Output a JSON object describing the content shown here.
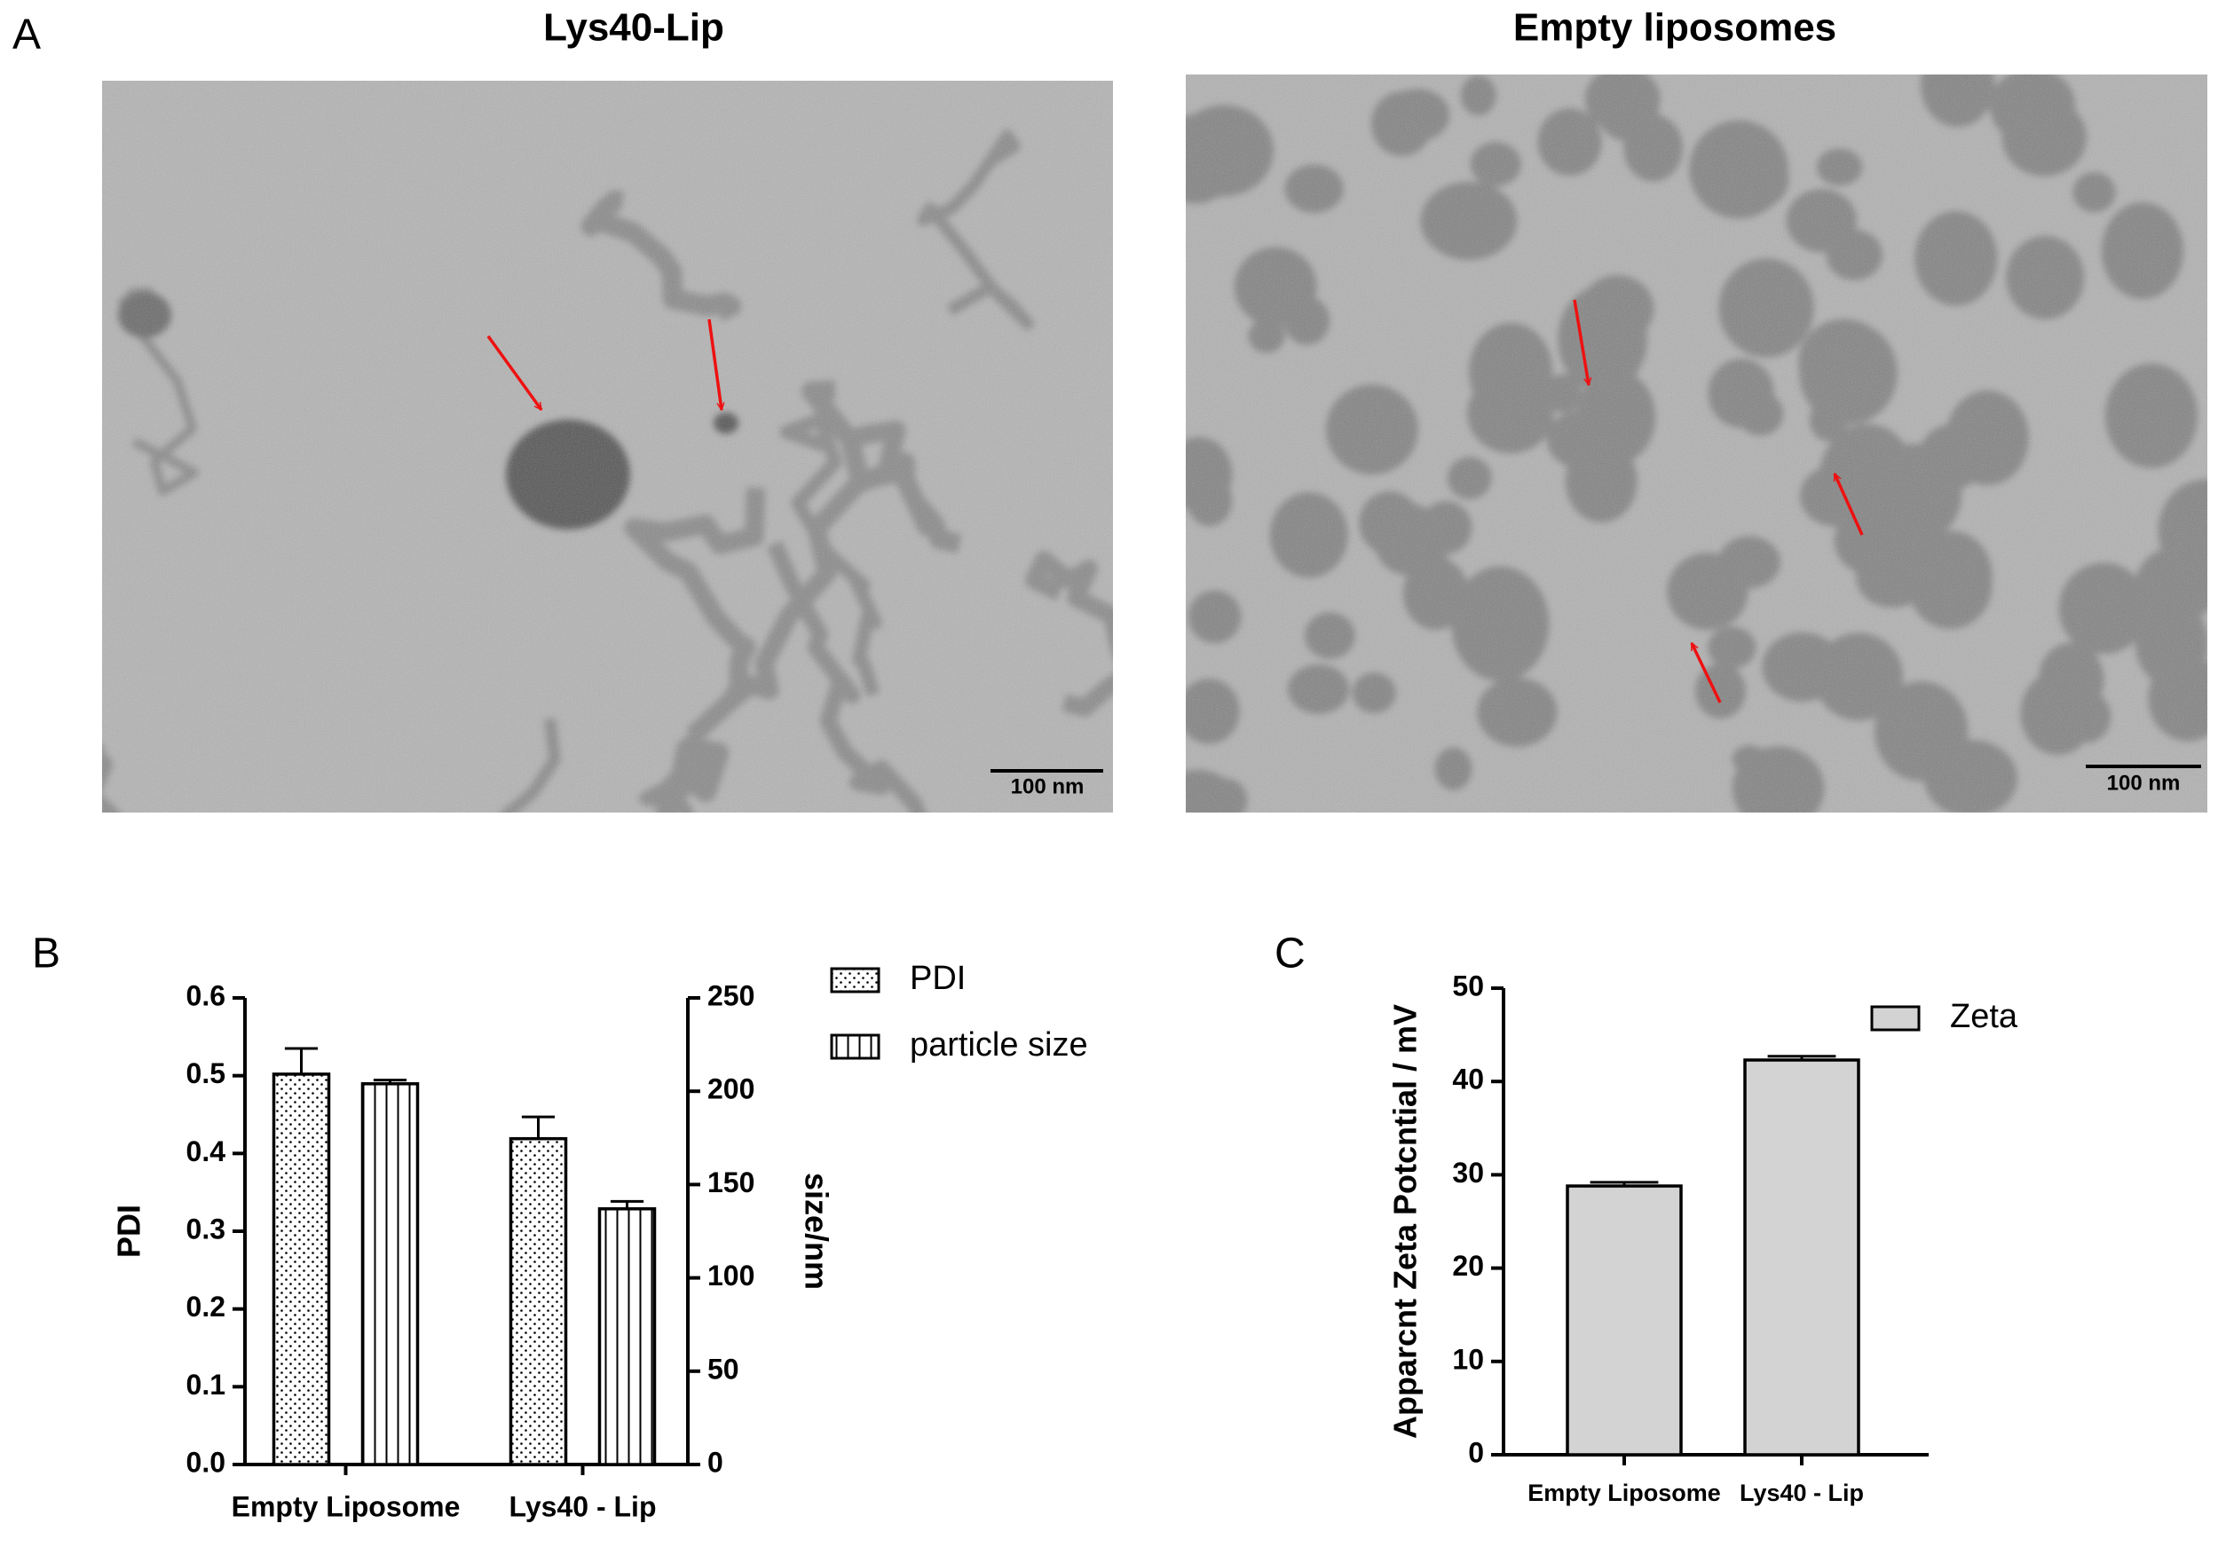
{
  "panels": [
    "A",
    "B",
    "C"
  ],
  "images": [
    {
      "title": "Lys40-Lip",
      "scale_bar": "100 nm"
    },
    {
      "title": "Empty liposomes",
      "scale_bar": "100 nm"
    }
  ],
  "chart_data": [
    {
      "type": "bar",
      "categories": [
        "Empty Liposome",
        "Lys40 - Lip"
      ],
      "ylabel": "PDI",
      "y2label": "size/nm",
      "ylim": [
        0,
        0.6
      ],
      "yticks": [
        {
          "value": 0,
          "label": "0.0"
        },
        0.1,
        0.2,
        0.3,
        0.4,
        0.5,
        0.6
      ],
      "y2lim": [
        0,
        250
      ],
      "y2ticks": [
        0,
        50,
        100,
        150,
        200,
        250
      ],
      "legend": "upper right",
      "series": [
        {
          "name": "PDI",
          "color": "#ffffff",
          "hatch": "dots",
          "values": [
            0.502,
            0.419
          ],
          "errors": [
            0.033,
            0.028
          ]
        },
        {
          "name": "particle size",
          "color": "#ffffff",
          "hatch": "vertical",
          "axis": "y2",
          "values": [
            204,
            137
          ],
          "errors": [
            2,
            4
          ]
        }
      ]
    },
    {
      "type": "bar",
      "categories": [
        "Empty Liposome",
        "Lys40 - Lip"
      ],
      "ylabel": "Apparcnt Zeta Potcntial / mV",
      "ylim": [
        0,
        50
      ],
      "yticks": [
        0,
        10,
        20,
        30,
        40,
        50
      ],
      "legend": "upper right",
      "series": [
        {
          "name": "Zeta",
          "color": "#d3d3d3",
          "values": [
            28.8,
            42.3
          ],
          "errors": [
            0.4,
            0.4
          ]
        }
      ]
    }
  ]
}
